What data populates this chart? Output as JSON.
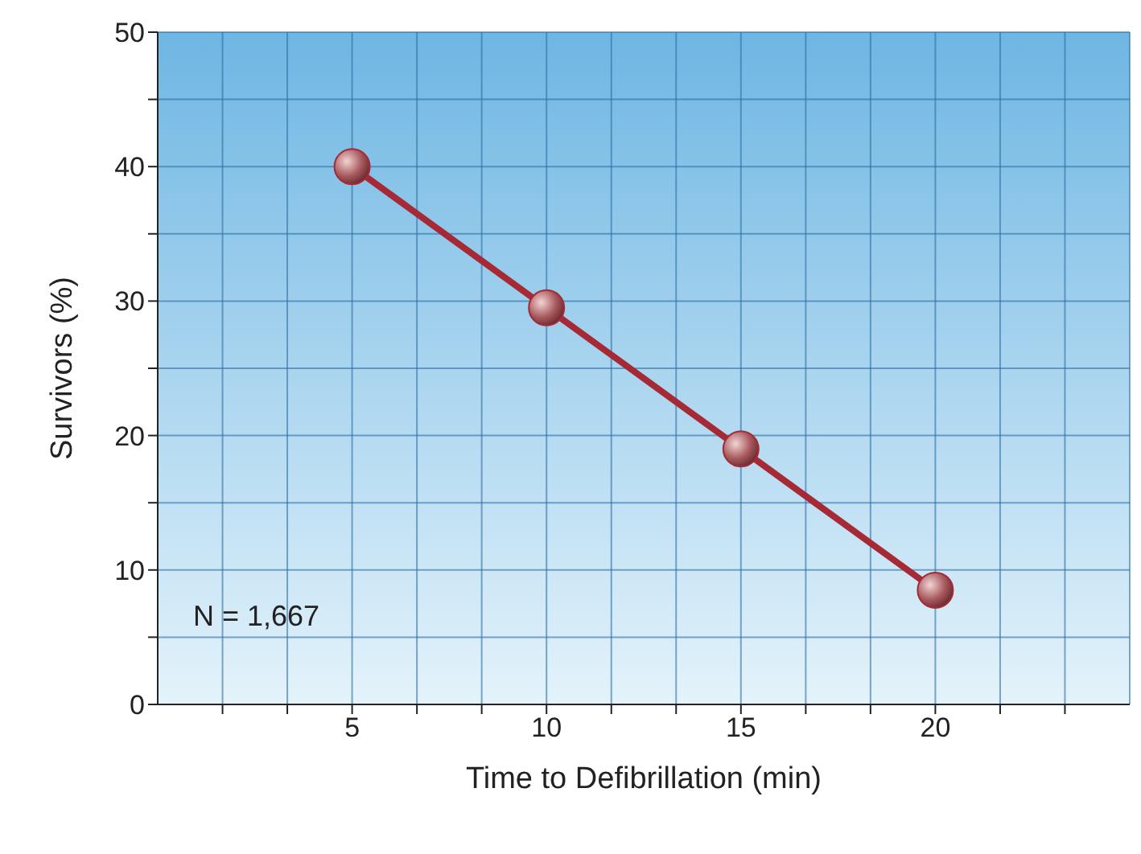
{
  "chart_data": {
    "type": "line",
    "xlabel": "Time to Defibrillation (min)",
    "ylabel": "Survivors (%)",
    "x": [
      5,
      10,
      15,
      20
    ],
    "series": [
      {
        "color": "#a52a35",
        "values": [
          40,
          29.5,
          19,
          8.5
        ]
      }
    ],
    "xlim": [
      0,
      25
    ],
    "xticks": [
      {
        "value": 1.667,
        "label": null
      },
      {
        "value": 3.333,
        "label": null
      },
      5,
      {
        "value": 6.667,
        "label": null
      },
      {
        "value": 8.333,
        "label": null
      },
      10,
      {
        "value": 11.667,
        "label": null
      },
      {
        "value": 13.333,
        "label": null
      },
      15,
      {
        "value": 16.667,
        "label": null
      },
      {
        "value": 18.333,
        "label": null
      },
      20,
      {
        "value": 21.667,
        "label": null
      },
      {
        "value": 23.333,
        "label": null
      }
    ],
    "ylim": [
      0,
      50
    ],
    "yticks": [
      0,
      {
        "value": 5,
        "label": null
      },
      10,
      {
        "value": 15,
        "label": null
      },
      20,
      {
        "value": 25,
        "label": null
      },
      30,
      {
        "value": 35,
        "label": null
      },
      40,
      {
        "value": 45,
        "label": null
      },
      50
    ],
    "grid": true,
    "marker": "circle",
    "line_style": "solid",
    "annotations": [
      "N = 1,667"
    ]
  }
}
